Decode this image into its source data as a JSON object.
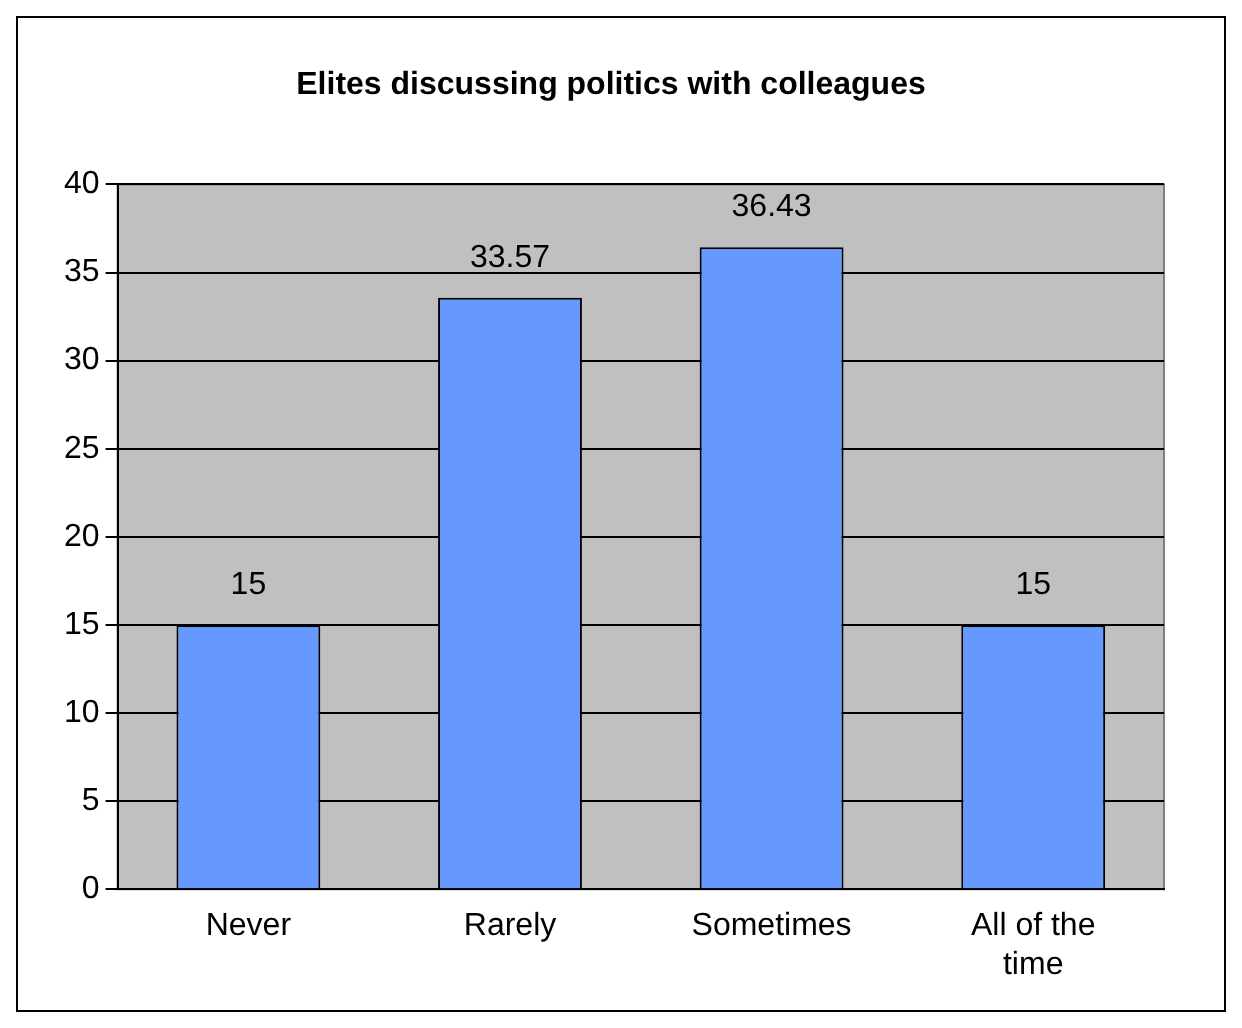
{
  "chart_data": {
    "type": "bar",
    "title": "Elites discussing politics with colleagues",
    "categories": [
      "Never",
      "Rarely",
      "Sometimes",
      "All of the time"
    ],
    "values": [
      15,
      33.57,
      36.43,
      15
    ],
    "color": "#6699ff",
    "ylim": [
      0,
      40
    ],
    "yticks": [
      0,
      5,
      10,
      15,
      20,
      25,
      30,
      35,
      40
    ],
    "grid": "y",
    "data_labels": true,
    "legend": false
  }
}
